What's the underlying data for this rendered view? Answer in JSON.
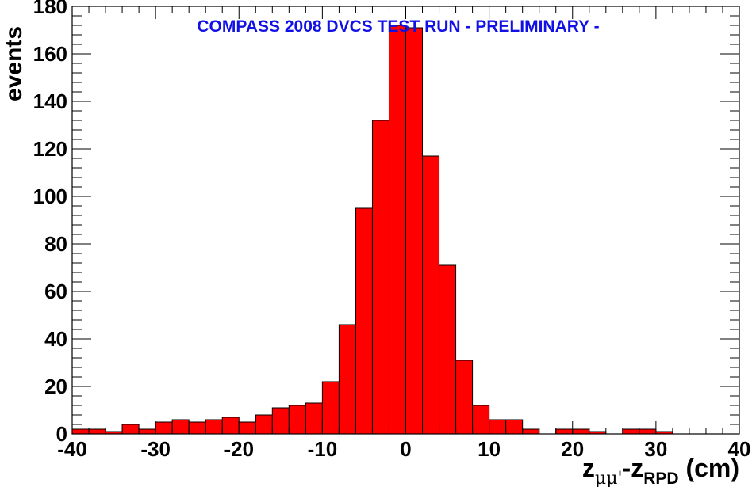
{
  "chart_data": {
    "type": "bar",
    "title": "COMPASS 2008 DVCS TEST RUN  - PRELIMINARY -",
    "ylabel": "events",
    "xlabel": {
      "main_a": "z",
      "sub_a": "μμ'",
      "main_b": "-z",
      "sub_b": "RPD",
      "main_c": " (cm)"
    },
    "xlim": [
      -40,
      40
    ],
    "ylim": [
      0,
      180
    ],
    "bin_width": 2,
    "x_ticks": [
      "-40",
      "-30",
      "-20",
      "-10",
      "0",
      "10",
      "20",
      "30",
      "40"
    ],
    "y_ticks": [
      "0",
      "20",
      "40",
      "60",
      "80",
      "100",
      "120",
      "140",
      "160",
      "180"
    ],
    "bin_edges_start": -40,
    "values": [
      2,
      2,
      1,
      4,
      2,
      5,
      6,
      5,
      6,
      7,
      5,
      8,
      11,
      12,
      13,
      22,
      46,
      95,
      132,
      172,
      171,
      117,
      71,
      31,
      12,
      6,
      6,
      2,
      0,
      2,
      2,
      1,
      0,
      2,
      2,
      1,
      0,
      0,
      0,
      0
    ],
    "colors": {
      "fill": "#ff0000",
      "edge": "#000000",
      "title": "#1111e6"
    },
    "grid": false,
    "legend": "none"
  }
}
